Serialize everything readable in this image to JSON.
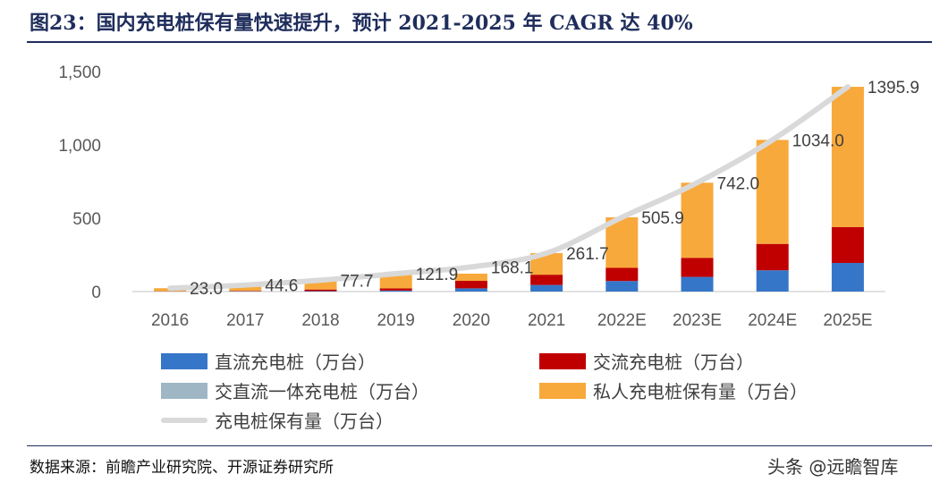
{
  "title": "图23：国内充电桩保有量快速提升，预计 2021-2025 年 CAGR 达 40%",
  "source": "数据来源：前瞻产业研究院、开源证券研究所",
  "watermark": "头条 @远瞻智库",
  "chart_data": {
    "type": "bar",
    "stacked": true,
    "categories": [
      "2016",
      "2017",
      "2018",
      "2019",
      "2020",
      "2021",
      "2022E",
      "2023E",
      "2024E",
      "2025E"
    ],
    "ylim": [
      0,
      1500
    ],
    "yticks": [
      0,
      500,
      1000,
      1500
    ],
    "ytick_labels": [
      "0",
      "500",
      "1,000",
      "1,500"
    ],
    "series": [
      {
        "name": "直流充电桩（万台）",
        "color": "#3676c8",
        "values": [
          1,
          2,
          3,
          7,
          22,
          45,
          72,
          100,
          145,
          195
        ]
      },
      {
        "name": "交流充电桩（万台）",
        "color": "#c00000",
        "values": [
          1,
          3,
          11,
          15,
          51,
          70,
          90,
          130,
          180,
          245
        ]
      },
      {
        "name": "交直流一体充电桩（万台）",
        "color": "#9fb7c4",
        "values": [
          0,
          0,
          0,
          0,
          0,
          0,
          0,
          0,
          0,
          0
        ]
      },
      {
        "name": "私人充电桩保有量（万台）",
        "color": "#f8a93b",
        "values": [
          21,
          40,
          64,
          100,
          49,
          147,
          344,
          512,
          709,
          956
        ]
      }
    ],
    "line": {
      "name": "充电桩保有量（万台）",
      "color": "#d9d9d9",
      "values": [
        23.0,
        44.6,
        77.7,
        121.9,
        168.1,
        261.7,
        505.9,
        742.0,
        1034.0,
        1395.9
      ],
      "labels": [
        "23.0",
        "44.6",
        "77.7",
        "121.9",
        "168.1",
        "261.7",
        "505.9",
        "742.0",
        "1034.0",
        "1395.9"
      ]
    },
    "grid": false,
    "legend_position": "bottom"
  }
}
